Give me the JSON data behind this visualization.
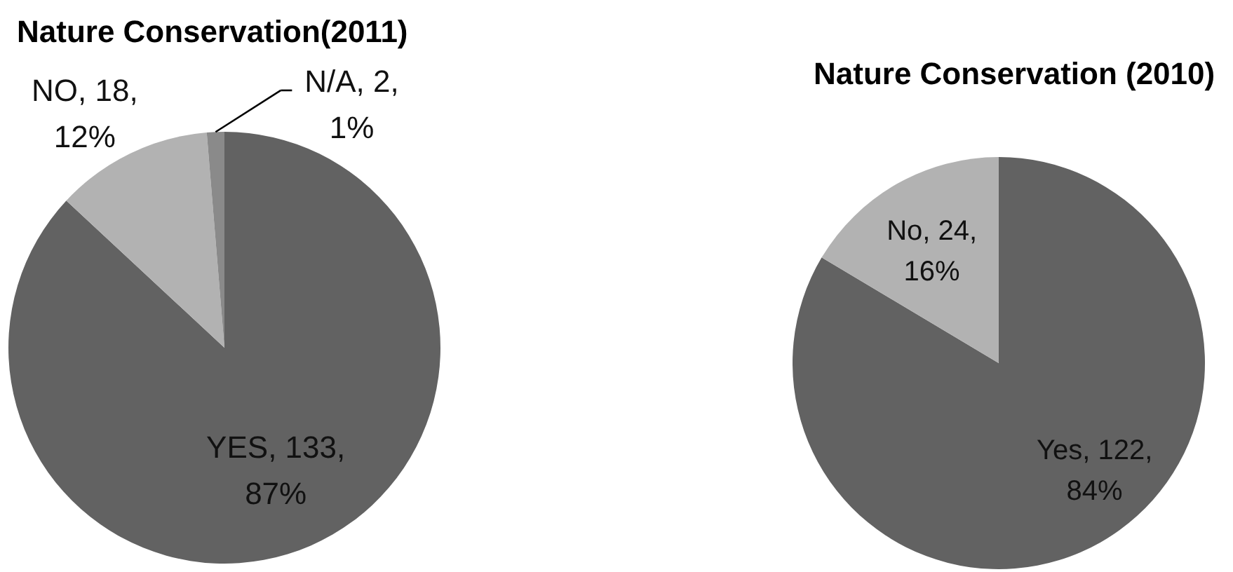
{
  "chart_data": [
    {
      "type": "pie",
      "title": "Nature Conservation(2011)",
      "categories": [
        "YES",
        "NO",
        "N/A"
      ],
      "values": [
        133,
        18,
        2
      ],
      "colors": [
        "#626262",
        "#b2b2b2",
        "#8a8a8a"
      ],
      "value_labels": [
        "133, 87%",
        "18, 12%",
        "2, 1%"
      ]
    },
    {
      "type": "pie",
      "title": "Nature Conservation (2010)",
      "categories": [
        "Yes",
        "No"
      ],
      "values": [
        122,
        24
      ],
      "colors": [
        "#626262",
        "#b2b2b2"
      ],
      "value_labels": [
        "122, 84%",
        "24, 16%"
      ]
    }
  ]
}
